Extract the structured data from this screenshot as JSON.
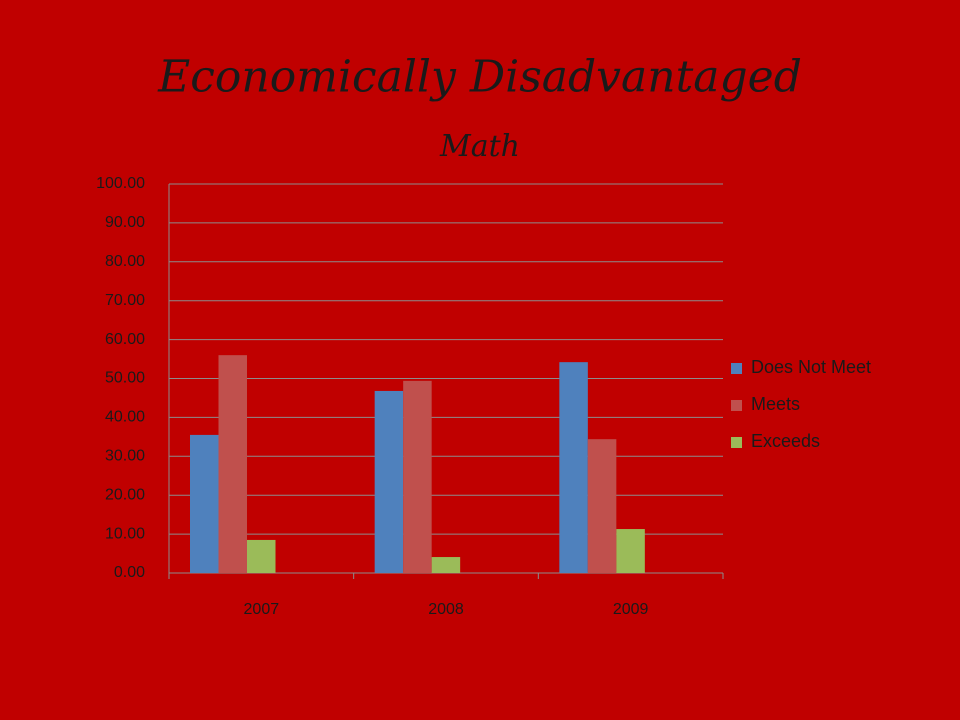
{
  "chart_data": {
    "type": "bar",
    "title": "Economically Disadvantaged",
    "subtitle": "Math",
    "categories": [
      "2007",
      "2008",
      "2009"
    ],
    "series": [
      {
        "name": "Does Not Meet",
        "color": "#4f81bd",
        "values": [
          35.5,
          46.8,
          54.2
        ]
      },
      {
        "name": "Meets",
        "color": "#c0504d",
        "values": [
          56.0,
          49.4,
          34.4
        ]
      },
      {
        "name": "Exceeds",
        "color": "#9bbb59",
        "values": [
          8.5,
          4.1,
          11.3
        ]
      }
    ],
    "ylim": [
      0,
      100
    ],
    "yticks": [
      {
        "value": 0,
        "label": "0.00"
      },
      {
        "value": 10,
        "label": "10.00"
      },
      {
        "value": 20,
        "label": "20.00"
      },
      {
        "value": 30,
        "label": "30.00"
      },
      {
        "value": 40,
        "label": "40.00"
      },
      {
        "value": 50,
        "label": "50.00"
      },
      {
        "value": 60,
        "label": "60.00"
      },
      {
        "value": 70,
        "label": "70.00"
      },
      {
        "value": 80,
        "label": "80.00"
      },
      {
        "value": 90,
        "label": "90.00"
      },
      {
        "value": 100,
        "label": "100.00"
      }
    ],
    "grid": true,
    "legend": "right"
  }
}
